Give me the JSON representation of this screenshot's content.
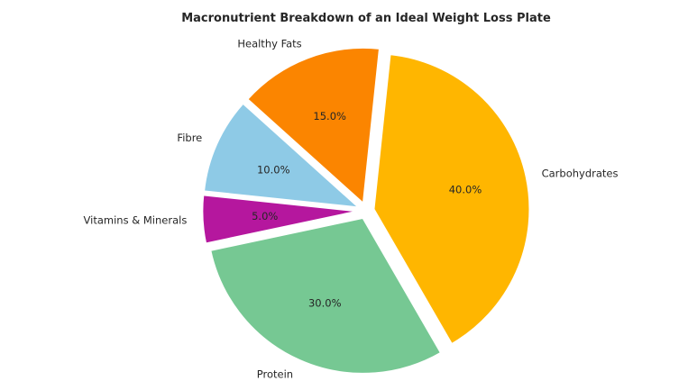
{
  "chart_data": {
    "type": "pie",
    "title": "Macronutrient Breakdown of an Ideal Weight Loss Plate",
    "categories": [
      "Carbohydrates",
      "Protein",
      "Vitamins & Minerals",
      "Fibre",
      "Healthy Fats"
    ],
    "values": [
      40.0,
      30.0,
      5.0,
      10.0,
      15.0
    ],
    "percent_labels": [
      "40.0%",
      "30.0%",
      "5.0%",
      "10.0%",
      "15.0%"
    ],
    "colors": [
      "#ffb600",
      "#76c893",
      "#b5179e",
      "#8ecae6",
      "#fb8500"
    ],
    "explode": true,
    "legend": "none"
  }
}
